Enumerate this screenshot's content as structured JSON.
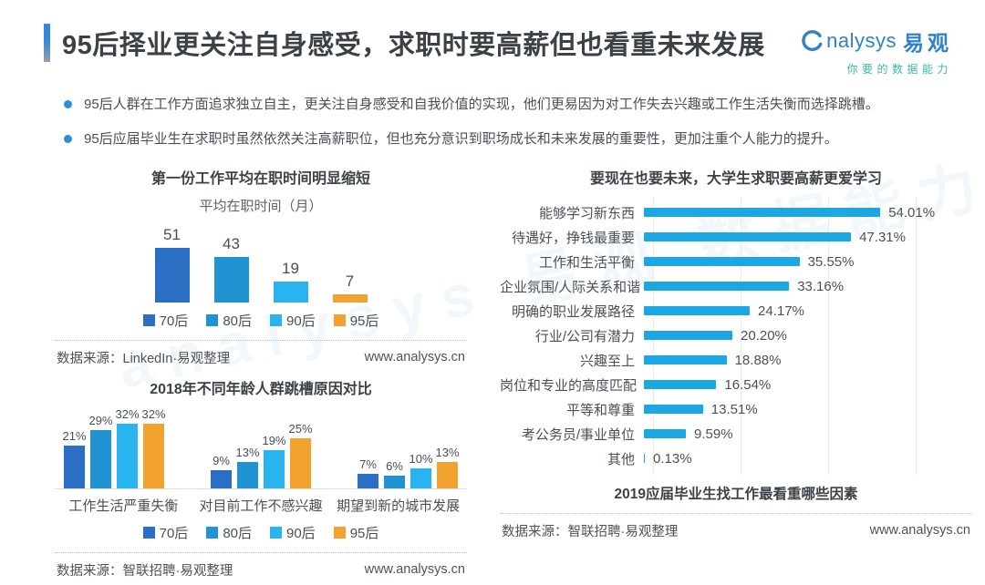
{
  "header": {
    "title": "95后择业更关注自身感受，求职时要高薪但也看重未来发展",
    "logo": {
      "brand_en": "nalysys",
      "brand_cn": "易观",
      "tagline": "你要的数据能力"
    }
  },
  "bullets": [
    "95后人群在工作方面追求独立自主，更关注自身感受和自我价值的实现，他们更易因为对工作失去兴趣或工作生活失衡而选择跳槽。",
    "95后应届毕业生在求职时虽然依然关注高薪职位，但也充分意识到职场成长和未来发展的重要性，更加注重个人能力的提升。"
  ],
  "watermark": "analysys 易观 数据能力",
  "colors": {
    "gen70": "#2b6fc4",
    "gen80": "#2193d2",
    "gen90": "#2ab4ef",
    "gen95": "#f2a22e",
    "hbar": "#1ca6e2"
  },
  "chart_data": [
    {
      "id": "tenure",
      "type": "bar",
      "title": "第一份工作平均在职时间明显缩短",
      "subtitle": "平均在职时间（月）",
      "categories": [
        "70后",
        "80后",
        "90后",
        "95后"
      ],
      "values": [
        51,
        43,
        19,
        7
      ],
      "ylim": [
        0,
        55
      ],
      "legend": [
        "70后",
        "80后",
        "90后",
        "95后"
      ],
      "legend_position": "bottom",
      "grid": false,
      "source": "数据来源：LinkedIn·易观整理",
      "site": "www.analysys.cn"
    },
    {
      "id": "jobhop",
      "type": "bar",
      "title": "2018年不同年龄人群跳槽原因对比",
      "categories": [
        "工作生活严重失衡",
        "对目前工作不感兴趣",
        "期望到新的城市发展"
      ],
      "series": [
        {
          "name": "70后",
          "values": [
            21,
            9,
            7
          ]
        },
        {
          "name": "80后",
          "values": [
            29,
            13,
            6
          ]
        },
        {
          "name": "90后",
          "values": [
            32,
            19,
            10
          ]
        },
        {
          "name": "95后",
          "values": [
            32,
            25,
            13
          ]
        }
      ],
      "unit": "%",
      "ylim": [
        0,
        35
      ],
      "legend": [
        "70后",
        "80后",
        "90后",
        "95后"
      ],
      "legend_position": "bottom",
      "grid": false,
      "source": "数据来源：智联招聘·易观整理",
      "site": "www.analysys.cn"
    },
    {
      "id": "factors",
      "type": "bar",
      "orientation": "horizontal",
      "title": "要现在也要未来，大学生求职要高薪更爱学习",
      "caption": "2019应届毕业生找工作最看重哪些因素",
      "categories": [
        "能够学习新东西",
        "待遇好，挣钱最重要",
        "工作和生活平衡",
        "企业氛围/人际关系和谐",
        "明确的职业发展路径",
        "行业/公司有潜力",
        "兴趣至上",
        "岗位和专业的高度匹配",
        "平等和尊重",
        "考公务员/事业单位",
        "其他"
      ],
      "values": [
        54.01,
        47.31,
        35.55,
        33.16,
        24.17,
        20.2,
        18.88,
        16.54,
        13.51,
        9.59,
        0.13
      ],
      "value_labels": [
        "54.01%",
        "47.31%",
        "35.55%",
        "33.16%",
        "24.17%",
        "20.20%",
        "18.88%",
        "16.54%",
        "13.51%",
        "9.59%",
        "0.13%"
      ],
      "xlim": [
        0,
        60
      ],
      "gridlines": [
        0,
        20,
        40,
        60
      ],
      "grid": true,
      "source": "数据来源：智联招聘·易观整理",
      "site": "www.analysys.cn"
    }
  ]
}
